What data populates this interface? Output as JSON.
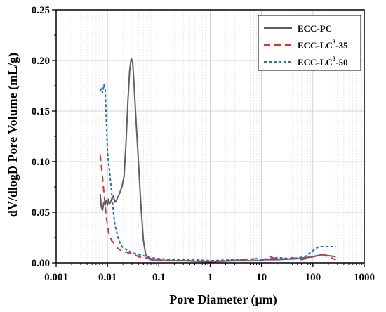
{
  "chart_data": {
    "type": "line",
    "xlabel": "Pore Diameter (μm)",
    "ylabel": "dV/dlogD Pore Volume (mL/g)",
    "xscale": "log",
    "xlim": [
      0.001,
      1000
    ],
    "ylim": [
      0,
      0.25
    ],
    "xticks": [
      "0.001",
      "0.01",
      "0.1",
      "1",
      "10",
      "100",
      "1000"
    ],
    "yticks": [
      "0.00",
      "0.05",
      "0.10",
      "0.15",
      "0.20",
      "0.25"
    ],
    "grid": true,
    "legend_position": "top-right",
    "series": [
      {
        "name": "ECC-PC",
        "color": "#606060",
        "dash": "solid",
        "points": [
          [
            0.0072,
            0.068
          ],
          [
            0.0076,
            0.055
          ],
          [
            0.008,
            0.052
          ],
          [
            0.0085,
            0.06
          ],
          [
            0.009,
            0.057
          ],
          [
            0.0095,
            0.062
          ],
          [
            0.01,
            0.057
          ],
          [
            0.0105,
            0.063
          ],
          [
            0.011,
            0.058
          ],
          [
            0.0115,
            0.06
          ],
          [
            0.012,
            0.063
          ],
          [
            0.013,
            0.066
          ],
          [
            0.014,
            0.06
          ],
          [
            0.015,
            0.062
          ],
          [
            0.017,
            0.068
          ],
          [
            0.019,
            0.075
          ],
          [
            0.021,
            0.085
          ],
          [
            0.023,
            0.12
          ],
          [
            0.025,
            0.16
          ],
          [
            0.027,
            0.19
          ],
          [
            0.029,
            0.202
          ],
          [
            0.031,
            0.198
          ],
          [
            0.033,
            0.175
          ],
          [
            0.036,
            0.14
          ],
          [
            0.04,
            0.1
          ],
          [
            0.045,
            0.055
          ],
          [
            0.05,
            0.022
          ],
          [
            0.055,
            0.009
          ],
          [
            0.06,
            0.005
          ],
          [
            0.07,
            0.003
          ],
          [
            0.1,
            0.002
          ],
          [
            0.3,
            0.002
          ],
          [
            1,
            0.001
          ],
          [
            3,
            0.002
          ],
          [
            9,
            0.002
          ],
          [
            10,
            0.003
          ],
          [
            20,
            0.003
          ],
          [
            50,
            0.004
          ],
          [
            100,
            0.006
          ],
          [
            150,
            0.008
          ],
          [
            200,
            0.007
          ],
          [
            280,
            0.006
          ]
        ]
      },
      {
        "name": "ECC-LC3-35",
        "color": "#e8302a",
        "dash": "dash",
        "points": [
          [
            0.0072,
            0.107
          ],
          [
            0.0078,
            0.09
          ],
          [
            0.0085,
            0.07
          ],
          [
            0.0095,
            0.045
          ],
          [
            0.0105,
            0.03
          ],
          [
            0.012,
            0.022
          ],
          [
            0.014,
            0.018
          ],
          [
            0.016,
            0.014
          ],
          [
            0.02,
            0.011
          ],
          [
            0.025,
            0.01
          ],
          [
            0.03,
            0.009
          ],
          [
            0.04,
            0.006
          ],
          [
            0.05,
            0.005
          ],
          [
            0.07,
            0.004
          ],
          [
            0.1,
            0.003
          ],
          [
            0.2,
            0.002
          ],
          [
            0.5,
            0.002
          ],
          [
            1,
            0.001
          ],
          [
            2,
            0.002
          ],
          [
            5,
            0.003
          ],
          [
            8,
            0.004
          ],
          [
            10,
            0.002
          ],
          [
            15,
            0.006
          ],
          [
            20,
            0.003
          ],
          [
            40,
            0.005
          ],
          [
            60,
            0.003
          ],
          [
            100,
            0.006
          ],
          [
            150,
            0.008
          ],
          [
            200,
            0.006
          ],
          [
            280,
            0.003
          ]
        ]
      },
      {
        "name": "ECC-LC3-50",
        "color": "#1f6fd1",
        "dash": "dot",
        "points": [
          [
            0.0072,
            0.17
          ],
          [
            0.0076,
            0.172
          ],
          [
            0.008,
            0.168
          ],
          [
            0.0085,
            0.176
          ],
          [
            0.009,
            0.172
          ],
          [
            0.0095,
            0.14
          ],
          [
            0.01,
            0.11
          ],
          [
            0.011,
            0.09
          ],
          [
            0.012,
            0.07
          ],
          [
            0.013,
            0.05
          ],
          [
            0.014,
            0.037
          ],
          [
            0.016,
            0.025
          ],
          [
            0.018,
            0.018
          ],
          [
            0.02,
            0.015
          ],
          [
            0.025,
            0.012
          ],
          [
            0.03,
            0.01
          ],
          [
            0.04,
            0.008
          ],
          [
            0.05,
            0.007
          ],
          [
            0.07,
            0.005
          ],
          [
            0.1,
            0.004
          ],
          [
            0.2,
            0.003
          ],
          [
            0.5,
            0.003
          ],
          [
            1,
            0.002
          ],
          [
            3,
            0.003
          ],
          [
            8,
            0.004
          ],
          [
            10,
            0.003
          ],
          [
            15,
            0.004
          ],
          [
            20,
            0.005
          ],
          [
            40,
            0.004
          ],
          [
            70,
            0.006
          ],
          [
            100,
            0.012
          ],
          [
            130,
            0.016
          ],
          [
            200,
            0.016
          ],
          [
            280,
            0.016
          ]
        ]
      }
    ]
  }
}
